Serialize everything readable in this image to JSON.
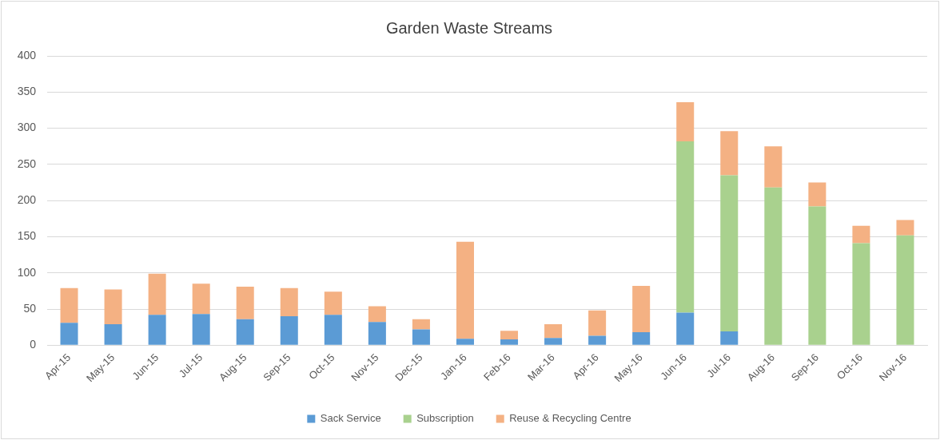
{
  "chart_data": {
    "type": "bar",
    "title": "Garden Waste Streams",
    "stacked": true,
    "legend": "bottom",
    "grid": "y",
    "categories": [
      "Apr-15",
      "May-15",
      "Jun-15",
      "Jul-15",
      "Aug-15",
      "Sep-15",
      "Oct-15",
      "Nov-15",
      "Dec-15",
      "Jan-16",
      "Feb-16",
      "Mar-16",
      "Apr-16",
      "May-16",
      "Jun-16",
      "Jul-16",
      "Aug-16",
      "Sep-16",
      "Oct-16",
      "Nov-16"
    ],
    "series": [
      {
        "name": "Sack Service",
        "color": "#5b9bd5",
        "values": [
          31,
          29,
          42,
          43,
          36,
          40,
          42,
          32,
          22,
          9,
          8,
          10,
          13,
          18,
          45,
          19,
          null,
          null,
          null,
          null
        ]
      },
      {
        "name": "Subscription",
        "color": "#a9d18e",
        "values": [
          null,
          null,
          null,
          null,
          null,
          null,
          null,
          null,
          null,
          null,
          null,
          null,
          null,
          null,
          237,
          216,
          218,
          192,
          141,
          152
        ]
      },
      {
        "name": "Reuse & Recycling Centre",
        "color": "#f4b183",
        "values": [
          48,
          48,
          57,
          42,
          45,
          39,
          32,
          22,
          14,
          134,
          12,
          19,
          35,
          64,
          54,
          61,
          57,
          33,
          24,
          21
        ]
      }
    ],
    "ylim": [
      0,
      400
    ],
    "yticks": [
      0,
      50,
      100,
      150,
      200,
      250,
      300,
      350,
      400
    ]
  }
}
